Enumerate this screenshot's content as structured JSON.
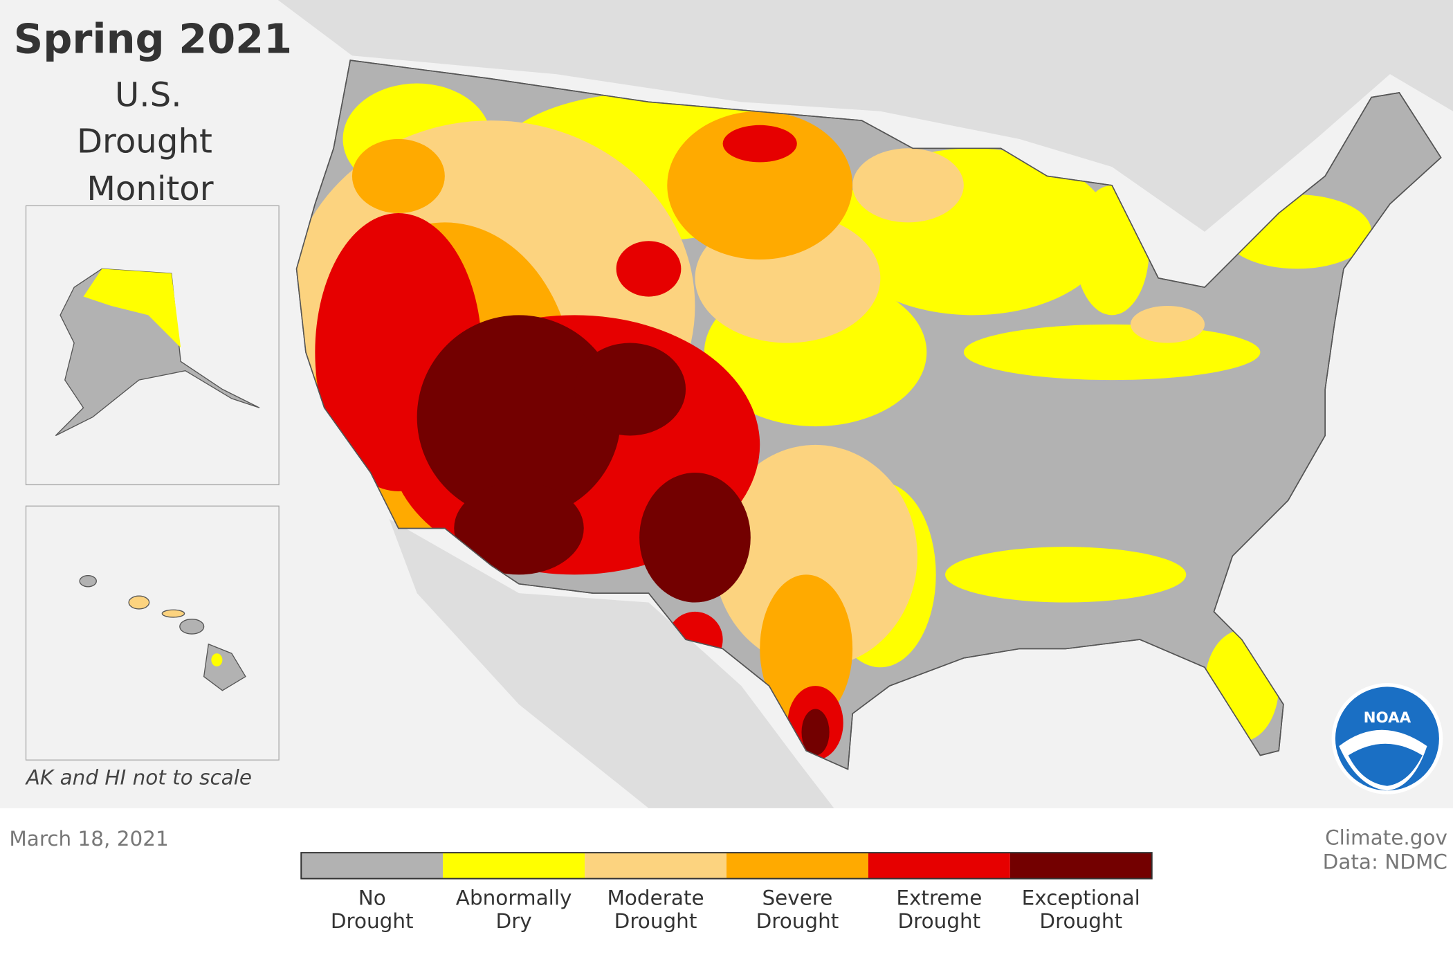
{
  "header": {
    "title": "Spring 2021",
    "subtitle_lines": [
      "U.S.",
      "Drought",
      "Monitor"
    ]
  },
  "inset_note": "AK and HI not to scale",
  "date": "March 18, 2021",
  "credits": [
    "Climate.gov",
    "Data: NDMC"
  ],
  "logo": "NOAA",
  "legend": {
    "items": [
      {
        "label": [
          "No",
          "Drought"
        ],
        "color": "#b2b2b2"
      },
      {
        "label": [
          "Abnormally",
          "Dry"
        ],
        "color": "#ffff00"
      },
      {
        "label": [
          "Moderate",
          "Drought"
        ],
        "color": "#fcd37f"
      },
      {
        "label": [
          "Severe",
          "Drought"
        ],
        "color": "#ffaa00"
      },
      {
        "label": [
          "Extreme",
          "Drought"
        ],
        "color": "#e60000"
      },
      {
        "label": [
          "Exceptional",
          "Drought"
        ],
        "color": "#730000"
      }
    ]
  }
}
